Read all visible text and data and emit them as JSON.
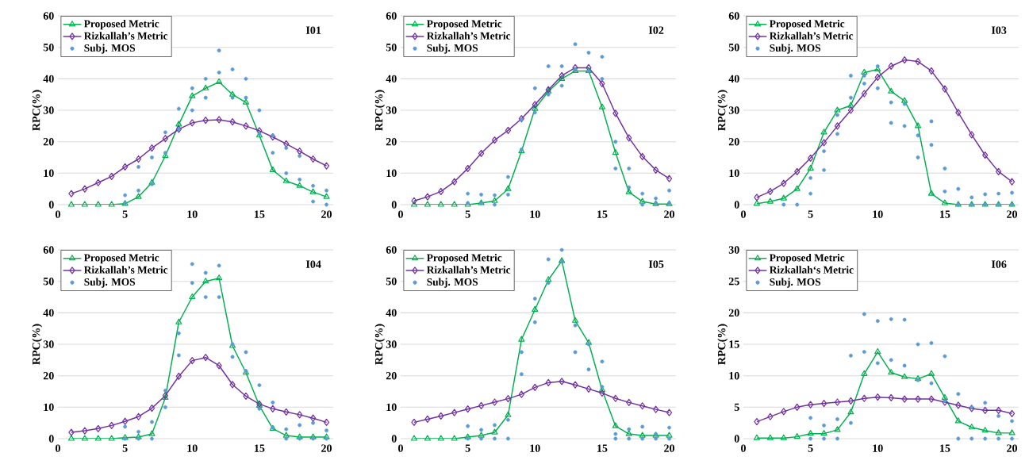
{
  "chart_data": [
    {
      "type": "line",
      "title": "I01",
      "ylabel": "RPC(%)",
      "xlim": [
        0,
        20.5
      ],
      "ylim": [
        0,
        60
      ],
      "xticks": [
        0,
        5,
        10,
        15,
        20
      ],
      "yticks": [
        0,
        10,
        20,
        30,
        40,
        50,
        60
      ],
      "grid": "y",
      "legend": "top left",
      "line_style": "solid",
      "x": [
        1,
        2,
        3,
        4,
        5,
        6,
        7,
        8,
        9,
        10,
        11,
        12,
        13,
        14,
        15,
        16,
        17,
        18,
        19,
        20
      ],
      "series": [
        {
          "name": "Proposed Metric",
          "color": "#00b050",
          "marker": "triangle",
          "values": [
            0,
            0,
            0,
            0,
            0.3,
            2.5,
            7,
            15.5,
            25.5,
            34.5,
            37,
            39,
            35,
            32.5,
            22,
            11,
            7.5,
            6,
            4,
            2.5
          ]
        },
        {
          "name": "Rizkallah’s Metric",
          "color": "#7030a0",
          "marker": "diamond",
          "values": [
            3.5,
            5,
            7,
            9,
            12,
            14.5,
            18,
            21,
            24,
            26,
            26.8,
            27,
            26.3,
            25,
            23.5,
            21.5,
            19.3,
            17,
            14.5,
            12.3
          ]
        },
        {
          "name": "Subj. MOS",
          "type": "scatter",
          "color": "#5b9bd5",
          "marker": "circle",
          "x": [
            5,
            5,
            6,
            6,
            7,
            7,
            8,
            8,
            9,
            9,
            10,
            10,
            11,
            11,
            12,
            12,
            13,
            13,
            14,
            14,
            15,
            15,
            16,
            16,
            17,
            17,
            18,
            18,
            19,
            19,
            20,
            20
          ],
          "values": [
            0.5,
            3,
            4.5,
            12,
            6.5,
            15,
            16.5,
            23,
            24,
            30.5,
            30,
            37,
            34,
            40,
            42,
            49,
            34,
            43,
            34,
            40,
            22.5,
            30,
            16.5,
            22,
            10,
            18,
            8,
            15.5,
            1,
            6,
            0,
            4.5
          ]
        }
      ]
    },
    {
      "type": "line",
      "title": "I02",
      "ylabel": "RPC(%)",
      "xlim": [
        0,
        20.5
      ],
      "ylim": [
        0,
        60
      ],
      "xticks": [
        0,
        5,
        10,
        15,
        20
      ],
      "yticks": [
        0,
        10,
        20,
        30,
        40,
        50,
        60
      ],
      "grid": "y",
      "legend": "top left",
      "line_style": "solid",
      "x": [
        1,
        2,
        3,
        4,
        5,
        6,
        7,
        8,
        9,
        10,
        11,
        12,
        13,
        14,
        15,
        16,
        17,
        18,
        19,
        20
      ],
      "series": [
        {
          "name": "Proposed Metric",
          "color": "#00b050",
          "marker": "triangle",
          "values": [
            0,
            0,
            0,
            0,
            0,
            0.5,
            1.2,
            5,
            17,
            30.5,
            36,
            40,
            42.5,
            42.5,
            31,
            16.5,
            4,
            1,
            0.2,
            0.2
          ]
        },
        {
          "name": "Rizkallah’s Metric",
          "color": "#7030a0",
          "marker": "diamond",
          "values": [
            1.2,
            2.5,
            4.2,
            7.3,
            11.5,
            16.3,
            20.5,
            23.6,
            27.3,
            31.8,
            36.5,
            41,
            43.5,
            43.5,
            38.5,
            29,
            21.2,
            15.3,
            11,
            8.3
          ]
        },
        {
          "name": "Subj. MOS",
          "type": "scatter",
          "color": "#5b9bd5",
          "marker": "circle",
          "x": [
            5,
            5,
            6,
            6,
            7,
            7,
            8,
            8,
            9,
            9,
            10,
            10,
            11,
            11,
            12,
            12,
            13,
            13,
            14,
            14,
            15,
            15,
            16,
            16,
            17,
            17,
            18,
            18,
            19,
            19,
            20,
            20
          ],
          "values": [
            0.5,
            3.5,
            0.5,
            3.2,
            0,
            3,
            3.2,
            8.8,
            17.5,
            27,
            29.3,
            37,
            35,
            44,
            37.8,
            44,
            43,
            51,
            42.5,
            48.3,
            40,
            47,
            11.5,
            20,
            5.5,
            11.5,
            0,
            3.5,
            0.5,
            2,
            0.5,
            4.5
          ]
        }
      ]
    },
    {
      "type": "line",
      "title": "I03",
      "ylabel": "RPC(%)",
      "xlim": [
        0,
        20.5
      ],
      "ylim": [
        0,
        60
      ],
      "xticks": [
        0,
        5,
        10,
        15,
        20
      ],
      "yticks": [
        0,
        10,
        20,
        30,
        40,
        50,
        60
      ],
      "grid": "y",
      "legend": "top left",
      "line_style": "solid",
      "x": [
        1,
        2,
        3,
        4,
        5,
        6,
        7,
        8,
        9,
        10,
        11,
        12,
        13,
        14,
        15,
        16,
        17,
        18,
        19,
        20
      ],
      "series": [
        {
          "name": "Proposed Metric",
          "color": "#00b050",
          "marker": "triangle",
          "values": [
            0.3,
            1,
            2,
            5,
            11.5,
            23,
            30,
            31.5,
            42,
            43,
            36,
            33,
            25,
            3.5,
            0.5,
            0,
            0,
            0,
            0,
            0
          ]
        },
        {
          "name": "Rizkallah’s Metric",
          "color": "#7030a0",
          "marker": "diamond",
          "values": [
            2.3,
            4.2,
            6.8,
            10.5,
            14.8,
            19.7,
            25,
            30,
            35.3,
            40.5,
            44,
            46,
            45.5,
            42.5,
            36.8,
            29.3,
            22.2,
            15.7,
            10.5,
            7.3
          ]
        },
        {
          "name": "Subj. MOS",
          "type": "scatter",
          "color": "#5b9bd5",
          "marker": "circle",
          "x": [
            3,
            4,
            5,
            5,
            6,
            6,
            7,
            7,
            8,
            8,
            9,
            9,
            10,
            10,
            11,
            11,
            12,
            12,
            13,
            13,
            14,
            14,
            15,
            15,
            16,
            16,
            17,
            17,
            18,
            18,
            19,
            19,
            20,
            20
          ],
          "values": [
            0,
            0,
            3.5,
            8.5,
            11,
            17,
            22.5,
            28.5,
            34,
            41,
            38.5,
            41,
            37,
            44,
            26,
            32.5,
            25,
            32,
            15,
            22,
            19,
            26.5,
            4.2,
            11.5,
            0,
            5,
            0,
            2.3,
            0,
            3.3,
            0,
            3.5,
            0,
            3.8
          ]
        }
      ]
    },
    {
      "type": "line",
      "title": "I04",
      "ylabel": "RPC(%)",
      "xlim": [
        0,
        20.5
      ],
      "ylim": [
        0,
        60
      ],
      "xticks": [
        0,
        5,
        10,
        15,
        20
      ],
      "yticks": [
        0,
        10,
        20,
        30,
        40,
        50,
        60
      ],
      "grid": "y",
      "legend": "top left",
      "line_style": "solid",
      "x": [
        1,
        2,
        3,
        4,
        5,
        6,
        7,
        8,
        9,
        10,
        11,
        12,
        13,
        14,
        15,
        16,
        17,
        18,
        19,
        20
      ],
      "series": [
        {
          "name": "Proposed Metric",
          "color": "#00b050",
          "marker": "triangle",
          "values": [
            0,
            0,
            0,
            0,
            0.3,
            0.5,
            1.5,
            13,
            37,
            45,
            50,
            51,
            29.5,
            21,
            10.5,
            3.2,
            1,
            0.5,
            0.5,
            0.5
          ]
        },
        {
          "name": "Rizkallah’s Metric",
          "color": "#7030a0",
          "marker": "diamond",
          "values": [
            2,
            2.5,
            3.2,
            4.2,
            5.5,
            7,
            9.7,
            13.7,
            19.8,
            24.8,
            25.8,
            23.2,
            17.2,
            13.5,
            11,
            9.5,
            8.5,
            7.6,
            6.5,
            5.2
          ]
        },
        {
          "name": "Subj. MOS",
          "type": "scatter",
          "color": "#5b9bd5",
          "marker": "circle",
          "x": [
            5,
            5,
            6,
            6,
            7,
            7,
            8,
            8,
            9,
            9,
            10,
            10,
            11,
            11,
            12,
            12,
            13,
            13,
            14,
            14,
            15,
            15,
            16,
            16,
            17,
            17,
            18,
            18,
            19,
            19,
            20,
            20
          ],
          "values": [
            0,
            3.8,
            0,
            2.2,
            0,
            5.3,
            10,
            15.3,
            26.5,
            33.5,
            49.5,
            55.5,
            45,
            52.7,
            45,
            55,
            26,
            30,
            21.5,
            27.5,
            9.5,
            17,
            3.5,
            11.5,
            0,
            3,
            0,
            4.3,
            0,
            5,
            0,
            2.6
          ]
        }
      ]
    },
    {
      "type": "line",
      "title": "I05",
      "ylabel": "RPC(%)",
      "xlim": [
        0,
        20.5
      ],
      "ylim": [
        0,
        60
      ],
      "xticks": [
        0,
        5,
        10,
        15,
        20
      ],
      "yticks": [
        0,
        10,
        20,
        30,
        40,
        50,
        60
      ],
      "grid": "y",
      "legend": "top left",
      "line_style": "solid",
      "x": [
        1,
        2,
        3,
        4,
        5,
        6,
        7,
        8,
        9,
        10,
        11,
        12,
        13,
        14,
        15,
        16,
        17,
        18,
        19,
        20
      ],
      "series": [
        {
          "name": "Proposed Metric",
          "color": "#00b050",
          "marker": "triangle",
          "values": [
            0,
            0,
            0,
            0,
            0.5,
            1,
            2,
            7.5,
            31.5,
            41,
            50.5,
            56.5,
            37.5,
            30.5,
            15.5,
            4,
            1.5,
            1,
            1,
            1
          ]
        },
        {
          "name": "Rizkallah’s Metric",
          "color": "#7030a0",
          "marker": "diamond",
          "values": [
            5.2,
            6.2,
            7.2,
            8.3,
            9.4,
            10.5,
            11.6,
            12.7,
            14.1,
            16.3,
            17.8,
            18.2,
            17.1,
            15.8,
            14.5,
            12.8,
            11.5,
            10.4,
            9.3,
            8.3
          ]
        },
        {
          "name": "Subj. MOS",
          "type": "scatter",
          "color": "#5b9bd5",
          "marker": "circle",
          "x": [
            5,
            5,
            6,
            6,
            7,
            7,
            8,
            8,
            9,
            9,
            10,
            10,
            11,
            11,
            12,
            12,
            13,
            13,
            14,
            14,
            15,
            15,
            16,
            16,
            17,
            17,
            18,
            18,
            19,
            19,
            20,
            20
          ],
          "values": [
            0,
            4,
            0,
            2.8,
            0,
            4.3,
            0,
            6,
            20.5,
            27.5,
            37,
            44.5,
            49.5,
            57,
            56.5,
            60,
            27.5,
            36,
            22,
            30,
            16.5,
            24.5,
            0,
            1.5,
            0,
            3,
            0,
            3.8,
            0,
            1.5,
            0,
            3.5
          ]
        }
      ]
    },
    {
      "type": "line",
      "title": "I06",
      "ylabel": "RPC(%)",
      "xlim": [
        0,
        20.5
      ],
      "ylim": [
        0,
        30
      ],
      "xticks": [
        0,
        5,
        10,
        15,
        20
      ],
      "yticks": [
        0,
        5,
        10,
        15,
        20,
        25,
        30
      ],
      "grid": "y",
      "legend": "top left",
      "line_style": "solid",
      "x": [
        1,
        2,
        3,
        4,
        5,
        6,
        7,
        8,
        9,
        10,
        11,
        12,
        13,
        14,
        15,
        16,
        17,
        18,
        19,
        20
      ],
      "series": [
        {
          "name": "Proposed Metric",
          "color": "#00b050",
          "marker": "triangle",
          "values": [
            0.1,
            0.1,
            0.1,
            0.3,
            0.8,
            0.8,
            1.4,
            4.2,
            10.3,
            13.8,
            10.5,
            9.8,
            9.5,
            10.3,
            6.5,
            2.8,
            1.8,
            1.3,
            0.9,
            0.9
          ]
        },
        {
          "name": "Rizkallah‘s Metric",
          "color": "#7030a0",
          "marker": "diamond",
          "values": [
            2.7,
            3.5,
            4.3,
            5,
            5.4,
            5.6,
            5.8,
            6,
            6.4,
            6.6,
            6.5,
            6.3,
            6.3,
            6.3,
            5.8,
            5.3,
            4.8,
            4.5,
            4.5,
            4
          ]
        },
        {
          "name": "Subj. MOS",
          "type": "scatter",
          "color": "#5b9bd5",
          "marker": "circle",
          "x": [
            5,
            5,
            6,
            6,
            7,
            7,
            8,
            8,
            9,
            9,
            10,
            10,
            11,
            11,
            12,
            12,
            13,
            13,
            14,
            14,
            15,
            15,
            16,
            16,
            17,
            17,
            18,
            18,
            19,
            19,
            20,
            20
          ],
          "values": [
            0,
            3.3,
            0,
            2.1,
            0,
            3.1,
            2.5,
            13.2,
            13.8,
            19.8,
            12,
            18.7,
            12.5,
            19,
            11.6,
            18.9,
            9.3,
            15,
            8.8,
            15.2,
            6,
            13.1,
            0,
            7.1,
            0,
            5,
            0,
            5.7,
            0,
            3.6,
            0,
            2.8
          ]
        }
      ]
    }
  ]
}
